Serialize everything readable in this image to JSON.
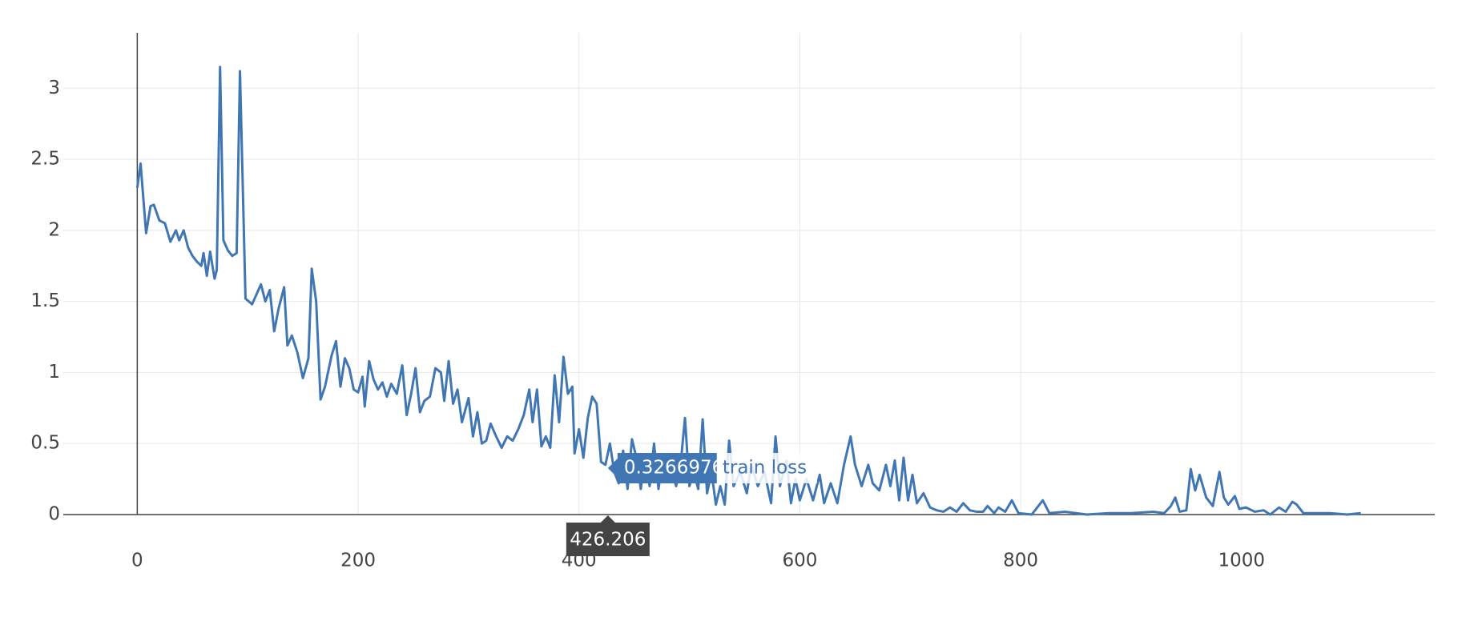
{
  "chart_data": {
    "type": "line",
    "x": [
      0,
      3,
      8,
      12,
      15,
      20,
      25,
      30,
      35,
      38,
      42,
      46,
      50,
      54,
      58,
      60,
      63,
      66,
      70,
      72,
      75,
      78,
      82,
      86,
      90,
      93,
      98,
      104,
      108,
      112,
      116,
      120,
      124,
      128,
      133,
      136,
      140,
      145,
      150,
      155,
      158,
      162,
      166,
      170,
      176,
      180,
      184,
      188,
      192,
      196,
      200,
      204,
      206,
      210,
      214,
      218,
      222,
      226,
      230,
      235,
      240,
      244,
      248,
      252,
      256,
      260,
      265,
      270,
      275,
      278,
      282,
      286,
      290,
      294,
      300,
      304,
      308,
      312,
      316,
      320,
      325,
      330,
      335,
      340,
      345,
      350,
      355,
      358,
      362,
      366,
      370,
      374,
      378,
      382,
      386,
      390,
      394,
      396,
      400,
      404,
      408,
      412,
      416,
      420,
      424,
      428,
      432,
      436,
      440,
      444,
      448,
      452,
      456,
      460,
      464,
      468,
      472,
      476,
      480,
      484,
      488,
      492,
      496,
      500,
      504,
      508,
      512,
      516,
      520,
      524,
      528,
      532,
      536,
      540,
      546,
      552,
      556,
      562,
      568,
      574,
      578,
      582,
      588,
      592,
      596,
      600,
      606,
      612,
      618,
      622,
      628,
      634,
      640,
      646,
      650,
      656,
      662,
      666,
      672,
      678,
      682,
      686,
      690,
      694,
      698,
      702,
      706,
      712,
      718,
      724,
      730,
      736,
      742,
      748,
      754,
      760,
      766,
      770,
      776,
      780,
      786,
      792,
      798,
      810,
      820,
      826,
      840,
      860,
      880,
      900,
      920,
      930,
      936,
      940,
      944,
      950,
      954,
      958,
      962,
      968,
      974,
      980,
      984,
      988,
      994,
      998,
      1004,
      1012,
      1020,
      1026,
      1034,
      1040,
      1046,
      1050,
      1056,
      1066,
      1080,
      1096,
      1108
    ],
    "series": [
      {
        "name": "train loss",
        "color": "#3f76b3",
        "values": [
          2.3,
          2.47,
          1.98,
          2.17,
          2.18,
          2.07,
          2.05,
          1.92,
          2.0,
          1.93,
          2.0,
          1.88,
          1.82,
          1.78,
          1.75,
          1.84,
          1.68,
          1.85,
          1.66,
          1.72,
          3.15,
          1.93,
          1.86,
          1.82,
          1.84,
          3.12,
          1.52,
          1.48,
          1.55,
          1.62,
          1.5,
          1.58,
          1.29,
          1.45,
          1.6,
          1.19,
          1.26,
          1.14,
          0.96,
          1.1,
          1.73,
          1.5,
          0.81,
          0.9,
          1.12,
          1.22,
          0.9,
          1.1,
          1.03,
          0.88,
          0.86,
          0.97,
          0.76,
          1.08,
          0.95,
          0.88,
          0.93,
          0.83,
          0.92,
          0.85,
          1.05,
          0.7,
          0.85,
          1.03,
          0.72,
          0.8,
          0.83,
          1.03,
          1.0,
          0.8,
          1.08,
          0.78,
          0.88,
          0.65,
          0.82,
          0.55,
          0.72,
          0.5,
          0.52,
          0.64,
          0.55,
          0.47,
          0.55,
          0.52,
          0.6,
          0.7,
          0.88,
          0.65,
          0.88,
          0.48,
          0.55,
          0.47,
          0.98,
          0.65,
          1.11,
          0.85,
          0.9,
          0.43,
          0.6,
          0.4,
          0.68,
          0.83,
          0.78,
          0.37,
          0.35,
          0.5,
          0.3,
          0.22,
          0.45,
          0.18,
          0.53,
          0.4,
          0.18,
          0.42,
          0.2,
          0.5,
          0.18,
          0.4,
          0.25,
          0.3,
          0.2,
          0.35,
          0.68,
          0.2,
          0.3,
          0.18,
          0.67,
          0.15,
          0.3,
          0.07,
          0.2,
          0.07,
          0.52,
          0.2,
          0.3,
          0.15,
          0.35,
          0.2,
          0.3,
          0.08,
          0.55,
          0.2,
          0.38,
          0.08,
          0.25,
          0.1,
          0.25,
          0.1,
          0.28,
          0.08,
          0.22,
          0.08,
          0.35,
          0.55,
          0.35,
          0.2,
          0.35,
          0.22,
          0.17,
          0.35,
          0.2,
          0.38,
          0.1,
          0.4,
          0.1,
          0.28,
          0.08,
          0.15,
          0.05,
          0.03,
          0.02,
          0.05,
          0.02,
          0.08,
          0.03,
          0.02,
          0.02,
          0.06,
          0.01,
          0.05,
          0.02,
          0.1,
          0.01,
          0,
          0.1,
          0.01,
          0.02,
          0,
          0.01,
          0.01,
          0.02,
          0.01,
          0.06,
          0.12,
          0.02,
          0.03,
          0.32,
          0.17,
          0.28,
          0.12,
          0.06,
          0.3,
          0.12,
          0.07,
          0.13,
          0.04,
          0.05,
          0.02,
          0.03,
          0,
          0.05,
          0.02,
          0.09,
          0.07,
          0.01,
          0.01,
          0.01,
          0,
          0.01
        ]
      }
    ],
    "xlim": [
      -67,
      1175
    ],
    "ylim": [
      0,
      3.39
    ],
    "xticks": [
      0,
      200,
      400,
      600,
      800,
      1000
    ],
    "yticks": [
      0,
      0.5,
      1,
      1.5,
      2,
      2.5,
      3
    ],
    "grid": true,
    "hover": {
      "x": 426.206,
      "y": 0.3266976
    }
  }
}
